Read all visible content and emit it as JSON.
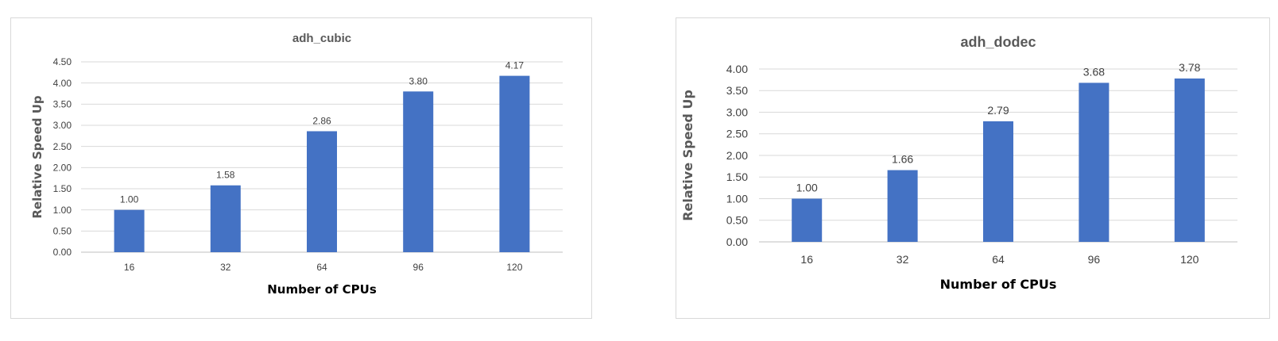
{
  "colors": {
    "bar": "#4472C4",
    "grid": "#d9d9d9",
    "axis": "#bfbfbf",
    "text": "#404040"
  },
  "chart_data": [
    {
      "type": "bar",
      "title": "adh_cubic",
      "xlabel": "Number of CPUs",
      "ylabel": "Relative Speed Up",
      "categories": [
        "16",
        "32",
        "64",
        "96",
        "120"
      ],
      "values": [
        1.0,
        1.58,
        2.86,
        3.8,
        4.17
      ],
      "value_labels": [
        "1.00",
        "1.58",
        "2.86",
        "3.80",
        "4.17"
      ],
      "ylim": [
        0,
        4.5
      ],
      "yticks": [
        "0.00",
        "0.50",
        "1.00",
        "1.50",
        "2.00",
        "2.50",
        "3.00",
        "3.50",
        "4.00",
        "4.50"
      ],
      "grid": true,
      "legend": "none"
    },
    {
      "type": "bar",
      "title": "adh_dodec",
      "xlabel": "Number of CPUs",
      "ylabel": "Relative Speed Up",
      "categories": [
        "16",
        "32",
        "64",
        "96",
        "120"
      ],
      "values": [
        1.0,
        1.66,
        2.79,
        3.68,
        3.78
      ],
      "value_labels": [
        "1.00",
        "1.66",
        "2.79",
        "3.68",
        "3.78"
      ],
      "ylim": [
        0,
        4.0
      ],
      "yticks": [
        "0.00",
        "0.50",
        "1.00",
        "1.50",
        "2.00",
        "2.50",
        "3.00",
        "3.50",
        "4.00"
      ],
      "grid": true,
      "legend": "none"
    }
  ]
}
